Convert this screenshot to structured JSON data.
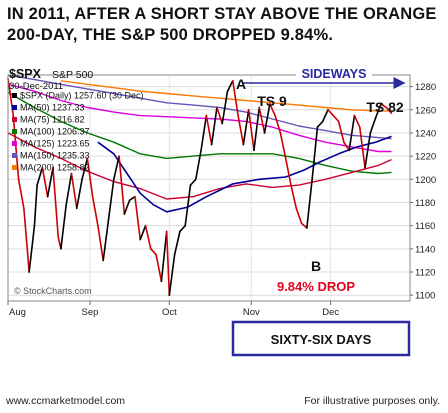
{
  "headline": {
    "line1": "IN 2011, AFTER A SHORT STAY ABOVE THE ORANGE",
    "line2": "200-DAY, THE S&P 500 DROPPED 9.84%."
  },
  "footer": {
    "website": "www.ccmarketmodel.com",
    "disclaimer": "For illustrative purposes only."
  },
  "chart_data": {
    "type": "line",
    "symbol": "$SPX",
    "symbol_name": "S&P 500",
    "date": "30-Dec-2011",
    "watermark": "© StockCharts.com",
    "x_tick_labels": [
      "Aug",
      "Sep",
      "Oct",
      "Nov",
      "Dec"
    ],
    "x_tick_days": [
      0,
      31,
      61,
      92,
      122
    ],
    "y_ticks": [
      1100,
      1120,
      1140,
      1160,
      1180,
      1200,
      1220,
      1240,
      1260,
      1280
    ],
    "ylim": [
      1095,
      1290
    ],
    "colors": {
      "price": "#cc0000",
      "ma50": "#000099",
      "ma75": "#cc0033",
      "ma100": "#007700",
      "ma125": "#dd00dd",
      "ma150": "#6655bb",
      "ma200": "#ff7700",
      "annotation_red": "#e8001c",
      "box_border": "#2a2aa0"
    },
    "legend": [
      {
        "label": "$SPX (Daily) 1257.60 (30 Dec)",
        "color": "#000000",
        "key": "price"
      },
      {
        "label": "MA(50) 1237.33",
        "color": "#000099",
        "key": "ma50"
      },
      {
        "label": "MA(75) 1216.82",
        "color": "#cc0033",
        "key": "ma75"
      },
      {
        "label": "MA(100) 1206.37",
        "color": "#007700",
        "key": "ma100"
      },
      {
        "label": "MA(125) 1223.65",
        "color": "#dd00dd",
        "key": "ma125"
      },
      {
        "label": "MA(150) 1235.33",
        "color": "#6655bb",
        "key": "ma150"
      },
      {
        "label": "MA(200) 1258.82",
        "color": "#ff7700",
        "key": "ma200"
      }
    ],
    "series": [
      {
        "key": "price",
        "name": "$SPX (Daily)",
        "points": [
          [
            0,
            1287
          ],
          [
            2,
            1255
          ],
          [
            4,
            1200
          ],
          [
            6,
            1175
          ],
          [
            8,
            1120
          ],
          [
            10,
            1160
          ],
          [
            11,
            1195
          ],
          [
            13,
            1210
          ],
          [
            15,
            1185
          ],
          [
            17,
            1210
          ],
          [
            19,
            1150
          ],
          [
            20,
            1140
          ],
          [
            22,
            1178
          ],
          [
            24,
            1205
          ],
          [
            26,
            1175
          ],
          [
            28,
            1200
          ],
          [
            30,
            1218
          ],
          [
            32,
            1185
          ],
          [
            34,
            1160
          ],
          [
            36,
            1130
          ],
          [
            38,
            1165
          ],
          [
            40,
            1200
          ],
          [
            42,
            1220
          ],
          [
            44,
            1170
          ],
          [
            46,
            1182
          ],
          [
            48,
            1185
          ],
          [
            50,
            1148
          ],
          [
            52,
            1160
          ],
          [
            54,
            1140
          ],
          [
            56,
            1135
          ],
          [
            58,
            1112
          ],
          [
            60,
            1155
          ],
          [
            61,
            1100
          ],
          [
            63,
            1135
          ],
          [
            65,
            1155
          ],
          [
            67,
            1160
          ],
          [
            69,
            1195
          ],
          [
            71,
            1200
          ],
          [
            73,
            1225
          ],
          [
            75,
            1255
          ],
          [
            77,
            1230
          ],
          [
            79,
            1262
          ],
          [
            81,
            1248
          ],
          [
            83,
            1276
          ],
          [
            85,
            1285
          ],
          [
            87,
            1255
          ],
          [
            89,
            1230
          ],
          [
            91,
            1260
          ],
          [
            93,
            1225
          ],
          [
            95,
            1262
          ],
          [
            97,
            1240
          ],
          [
            99,
            1265
          ],
          [
            101,
            1255
          ],
          [
            103,
            1240
          ],
          [
            105,
            1218
          ],
          [
            107,
            1195
          ],
          [
            109,
            1175
          ],
          [
            111,
            1162
          ],
          [
            113,
            1158
          ],
          [
            115,
            1200
          ],
          [
            117,
            1245
          ],
          [
            119,
            1250
          ],
          [
            121,
            1260
          ],
          [
            123,
            1255
          ],
          [
            125,
            1250
          ],
          [
            127,
            1232
          ],
          [
            129,
            1225
          ],
          [
            131,
            1255
          ],
          [
            133,
            1245
          ],
          [
            135,
            1210
          ],
          [
            137,
            1240
          ],
          [
            139,
            1253
          ],
          [
            141,
            1265
          ],
          [
            143,
            1262
          ],
          [
            145,
            1257
          ]
        ]
      },
      {
        "key": "ma50",
        "name": "MA(50)",
        "points": [
          [
            34,
            1232
          ],
          [
            40,
            1222
          ],
          [
            45,
            1205
          ],
          [
            50,
            1188
          ],
          [
            55,
            1178
          ],
          [
            60,
            1172
          ],
          [
            68,
            1176
          ],
          [
            75,
            1185
          ],
          [
            85,
            1196
          ],
          [
            95,
            1200
          ],
          [
            105,
            1202
          ],
          [
            112,
            1208
          ],
          [
            118,
            1215
          ],
          [
            125,
            1222
          ],
          [
            132,
            1228
          ],
          [
            139,
            1232
          ],
          [
            145,
            1237
          ]
        ]
      },
      {
        "key": "ma75",
        "name": "MA(75)",
        "points": [
          [
            0,
            1240
          ],
          [
            10,
            1228
          ],
          [
            20,
            1218
          ],
          [
            30,
            1207
          ],
          [
            40,
            1198
          ],
          [
            50,
            1192
          ],
          [
            60,
            1183
          ],
          [
            70,
            1185
          ],
          [
            80,
            1192
          ],
          [
            90,
            1196
          ],
          [
            100,
            1193
          ],
          [
            110,
            1195
          ],
          [
            120,
            1200
          ],
          [
            130,
            1206
          ],
          [
            140,
            1212
          ],
          [
            145,
            1217
          ]
        ]
      },
      {
        "key": "ma100",
        "name": "MA(100)",
        "points": [
          [
            0,
            1275
          ],
          [
            10,
            1262
          ],
          [
            20,
            1250
          ],
          [
            30,
            1240
          ],
          [
            40,
            1232
          ],
          [
            50,
            1222
          ],
          [
            60,
            1218
          ],
          [
            70,
            1220
          ],
          [
            80,
            1222
          ],
          [
            90,
            1222
          ],
          [
            100,
            1222
          ],
          [
            110,
            1218
          ],
          [
            120,
            1212
          ],
          [
            130,
            1207
          ],
          [
            140,
            1205
          ],
          [
            145,
            1206
          ]
        ]
      },
      {
        "key": "ma125",
        "name": "MA(125)",
        "points": [
          [
            0,
            1282
          ],
          [
            10,
            1276
          ],
          [
            20,
            1268
          ],
          [
            30,
            1262
          ],
          [
            40,
            1258
          ],
          [
            50,
            1255
          ],
          [
            60,
            1254
          ],
          [
            70,
            1253
          ],
          [
            80,
            1252
          ],
          [
            90,
            1250
          ],
          [
            100,
            1245
          ],
          [
            110,
            1238
          ],
          [
            120,
            1232
          ],
          [
            130,
            1228
          ],
          [
            140,
            1224
          ],
          [
            145,
            1224
          ]
        ]
      },
      {
        "key": "ma150",
        "name": "MA(150)",
        "points": [
          [
            0,
            1290
          ],
          [
            10,
            1286
          ],
          [
            20,
            1282
          ],
          [
            30,
            1278
          ],
          [
            40,
            1274
          ],
          [
            50,
            1270
          ],
          [
            60,
            1266
          ],
          [
            70,
            1264
          ],
          [
            80,
            1262
          ],
          [
            90,
            1258
          ],
          [
            100,
            1252
          ],
          [
            110,
            1246
          ],
          [
            120,
            1242
          ],
          [
            130,
            1238
          ],
          [
            140,
            1236
          ],
          [
            145,
            1235
          ]
        ]
      },
      {
        "key": "ma200",
        "name": "MA(200)",
        "points": [
          [
            20,
            1285
          ],
          [
            30,
            1282
          ],
          [
            40,
            1279
          ],
          [
            50,
            1276
          ],
          [
            60,
            1274
          ],
          [
            70,
            1272
          ],
          [
            80,
            1270
          ],
          [
            90,
            1268
          ],
          [
            100,
            1266
          ],
          [
            110,
            1264
          ],
          [
            120,
            1262
          ],
          [
            130,
            1260
          ],
          [
            140,
            1259
          ],
          [
            145,
            1259
          ]
        ]
      }
    ],
    "annotations": {
      "sideways": "SIDEWAYS",
      "label_a": "A",
      "ts9": "TS 9",
      "ts82": "TS 82",
      "label_b": "B",
      "drop": "9.84% DROP",
      "sixty_six": "SIXTY-SIX DAYS"
    }
  }
}
